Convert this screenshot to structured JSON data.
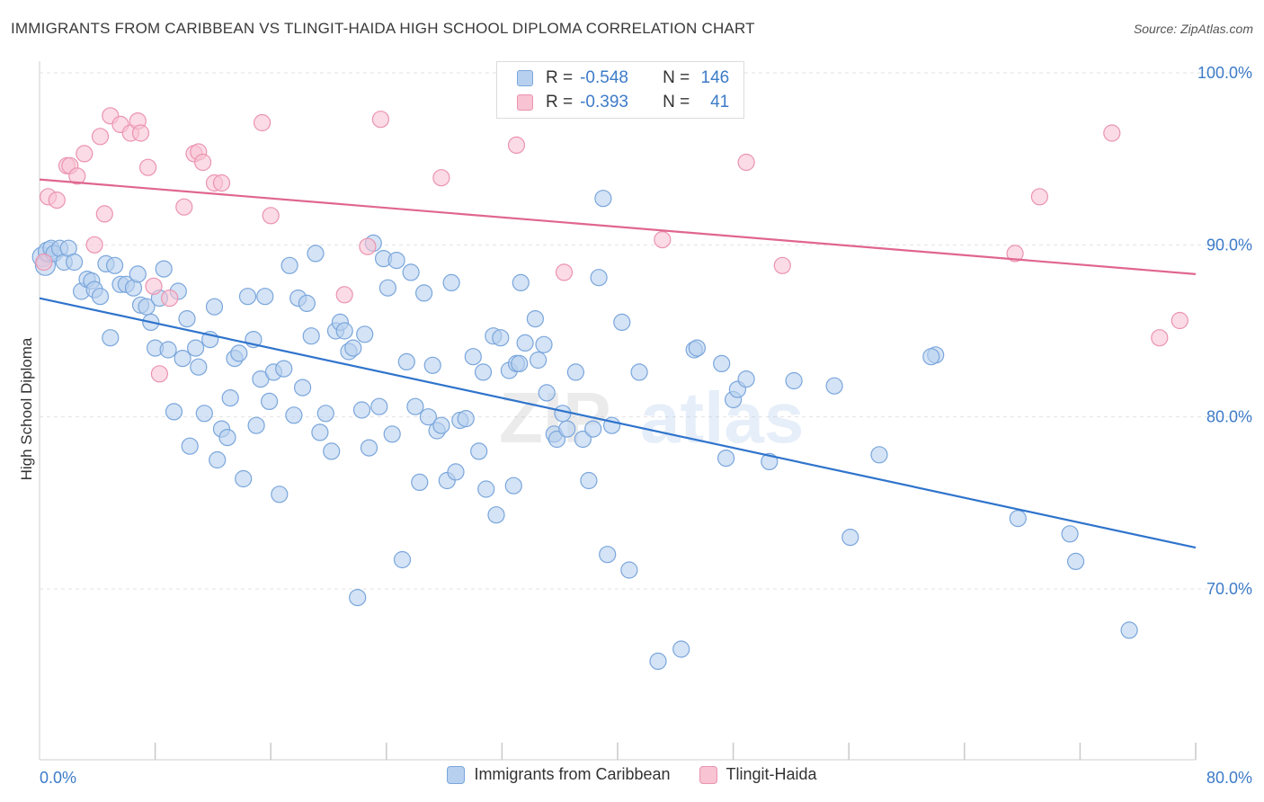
{
  "header": {
    "title": "IMMIGRANTS FROM CARIBBEAN VS TLINGIT-HAIDA HIGH SCHOOL DIPLOMA CORRELATION CHART",
    "source": "Source: ZipAtlas.com"
  },
  "watermark": {
    "zip": "ZIP",
    "atlas": "atlas"
  },
  "legend": {
    "series": [
      {
        "r_label": "R =",
        "r_value": "-0.548",
        "n_label": "N =",
        "n_value": "146"
      },
      {
        "r_label": "R =",
        "r_value": "-0.393",
        "n_label": "N =",
        "n_value": "41"
      }
    ]
  },
  "colors": {
    "blue_fill": "#b8d0ef",
    "blue_stroke": "#7aa6dc",
    "blue_line": "#2f74cc",
    "pink_fill": "#f8c3d3",
    "pink_stroke": "#eb93b0",
    "pink_line": "#e0668e",
    "tick_text": "#3d7bc8"
  },
  "chart_data": {
    "type": "scatter",
    "title": "IMMIGRANTS FROM CARIBBEAN VS TLINGIT-HAIDA HIGH SCHOOL DIPLOMA CORRELATION CHART",
    "xlabel": "",
    "ylabel": "High School Diploma",
    "xlim": [
      0,
      80
    ],
    "ylim": [
      60,
      101.5
    ],
    "x_tick_labels": [
      "0.0%",
      "80.0%"
    ],
    "y_ticks": [
      70,
      80,
      90,
      100
    ],
    "y_tick_labels": [
      "70.0%",
      "80.0%",
      "90.0%",
      "100.0%"
    ],
    "grid": true,
    "legend_position": "top-center",
    "series": [
      {
        "name": "Immigrants from Caribbean",
        "trend": {
          "x": [
            0,
            80
          ],
          "y": [
            86.9,
            72.4
          ]
        },
        "points": [
          [
            0.2,
            89.3
          ],
          [
            0.4,
            88.8
          ],
          [
            0.6,
            89.6
          ],
          [
            0.8,
            89.8
          ],
          [
            1.0,
            89.5
          ],
          [
            1.4,
            89.8
          ],
          [
            1.7,
            89.0
          ],
          [
            2.0,
            89.8
          ],
          [
            2.4,
            89.0
          ],
          [
            2.9,
            87.3
          ],
          [
            3.3,
            88.0
          ],
          [
            3.6,
            87.9
          ],
          [
            3.8,
            87.4
          ],
          [
            4.2,
            87.0
          ],
          [
            4.6,
            88.9
          ],
          [
            4.9,
            84.6
          ],
          [
            5.2,
            88.8
          ],
          [
            5.6,
            87.7
          ],
          [
            6.0,
            87.7
          ],
          [
            6.5,
            87.5
          ],
          [
            6.8,
            88.3
          ],
          [
            7.0,
            86.5
          ],
          [
            7.4,
            86.4
          ],
          [
            7.7,
            85.5
          ],
          [
            8.0,
            84.0
          ],
          [
            8.3,
            86.9
          ],
          [
            8.6,
            88.6
          ],
          [
            8.9,
            83.9
          ],
          [
            9.3,
            80.3
          ],
          [
            9.6,
            87.3
          ],
          [
            9.9,
            83.4
          ],
          [
            10.2,
            85.7
          ],
          [
            10.4,
            78.3
          ],
          [
            10.8,
            84.0
          ],
          [
            11.0,
            82.9
          ],
          [
            11.4,
            80.2
          ],
          [
            11.8,
            84.5
          ],
          [
            12.1,
            86.4
          ],
          [
            12.3,
            77.5
          ],
          [
            12.6,
            79.3
          ],
          [
            13.0,
            78.8
          ],
          [
            13.2,
            81.1
          ],
          [
            13.5,
            83.4
          ],
          [
            13.8,
            83.7
          ],
          [
            14.1,
            76.4
          ],
          [
            14.4,
            87.0
          ],
          [
            14.8,
            84.5
          ],
          [
            15.0,
            79.5
          ],
          [
            15.3,
            82.2
          ],
          [
            15.6,
            87.0
          ],
          [
            15.9,
            80.9
          ],
          [
            16.2,
            82.6
          ],
          [
            16.6,
            75.5
          ],
          [
            16.9,
            82.8
          ],
          [
            17.3,
            88.8
          ],
          [
            17.6,
            80.1
          ],
          [
            17.9,
            86.9
          ],
          [
            18.2,
            81.7
          ],
          [
            18.5,
            86.6
          ],
          [
            18.8,
            84.7
          ],
          [
            19.1,
            89.5
          ],
          [
            19.4,
            79.1
          ],
          [
            19.8,
            80.2
          ],
          [
            20.2,
            78.0
          ],
          [
            20.5,
            85.0
          ],
          [
            20.8,
            85.5
          ],
          [
            21.1,
            85.0
          ],
          [
            21.4,
            83.8
          ],
          [
            21.7,
            84.0
          ],
          [
            22.0,
            69.5
          ],
          [
            22.3,
            80.4
          ],
          [
            22.5,
            84.8
          ],
          [
            22.8,
            78.2
          ],
          [
            23.1,
            90.1
          ],
          [
            23.5,
            80.6
          ],
          [
            23.8,
            89.2
          ],
          [
            24.1,
            87.5
          ],
          [
            24.4,
            79.0
          ],
          [
            24.7,
            89.1
          ],
          [
            25.1,
            71.7
          ],
          [
            25.4,
            83.2
          ],
          [
            25.7,
            88.4
          ],
          [
            26.0,
            80.6
          ],
          [
            26.3,
            76.2
          ],
          [
            26.6,
            87.2
          ],
          [
            26.9,
            80.0
          ],
          [
            27.2,
            83.0
          ],
          [
            27.5,
            79.2
          ],
          [
            27.8,
            79.5
          ],
          [
            28.2,
            76.3
          ],
          [
            28.5,
            87.8
          ],
          [
            28.8,
            76.8
          ],
          [
            29.1,
            79.8
          ],
          [
            29.5,
            79.9
          ],
          [
            30.0,
            83.5
          ],
          [
            30.4,
            78.0
          ],
          [
            30.7,
            82.6
          ],
          [
            30.9,
            75.8
          ],
          [
            31.4,
            84.7
          ],
          [
            31.6,
            74.3
          ],
          [
            31.9,
            84.6
          ],
          [
            32.5,
            82.7
          ],
          [
            32.8,
            76.0
          ],
          [
            33.0,
            83.1
          ],
          [
            33.3,
            87.8
          ],
          [
            33.6,
            84.3
          ],
          [
            33.2,
            83.1
          ],
          [
            34.3,
            85.7
          ],
          [
            34.5,
            83.3
          ],
          [
            34.9,
            84.2
          ],
          [
            35.1,
            81.4
          ],
          [
            35.6,
            79.0
          ],
          [
            35.8,
            78.7
          ],
          [
            36.2,
            80.2
          ],
          [
            36.5,
            79.3
          ],
          [
            37.1,
            82.6
          ],
          [
            37.6,
            78.7
          ],
          [
            38.0,
            76.3
          ],
          [
            38.3,
            79.3
          ],
          [
            38.7,
            88.1
          ],
          [
            39.0,
            92.7
          ],
          [
            39.3,
            72.0
          ],
          [
            39.6,
            79.5
          ],
          [
            40.3,
            85.5
          ],
          [
            40.8,
            71.1
          ],
          [
            41.5,
            82.6
          ],
          [
            42.8,
            65.8
          ],
          [
            44.4,
            66.5
          ],
          [
            45.3,
            83.9
          ],
          [
            45.5,
            84.0
          ],
          [
            47.2,
            83.1
          ],
          [
            47.5,
            77.6
          ],
          [
            48.0,
            81.0
          ],
          [
            48.3,
            81.6
          ],
          [
            48.9,
            82.2
          ],
          [
            50.5,
            77.4
          ],
          [
            52.2,
            82.1
          ],
          [
            55.0,
            81.8
          ],
          [
            56.1,
            73.0
          ],
          [
            58.1,
            77.8
          ],
          [
            62.0,
            83.6
          ],
          [
            67.7,
            74.1
          ],
          [
            71.3,
            73.2
          ],
          [
            71.7,
            71.6
          ],
          [
            75.4,
            67.6
          ],
          [
            61.7,
            83.5
          ]
        ]
      },
      {
        "name": "Tlingit-Haida",
        "trend": {
          "x": [
            0,
            80
          ],
          "y": [
            93.8,
            88.3
          ]
        },
        "points": [
          [
            0.3,
            89.0
          ],
          [
            0.6,
            92.8
          ],
          [
            1.2,
            92.6
          ],
          [
            1.9,
            94.6
          ],
          [
            2.1,
            94.6
          ],
          [
            2.6,
            94.0
          ],
          [
            3.1,
            95.3
          ],
          [
            3.8,
            90.0
          ],
          [
            4.2,
            96.3
          ],
          [
            4.5,
            91.8
          ],
          [
            4.9,
            97.5
          ],
          [
            5.6,
            97.0
          ],
          [
            6.3,
            96.5
          ],
          [
            6.8,
            97.2
          ],
          [
            7.0,
            96.5
          ],
          [
            7.5,
            94.5
          ],
          [
            7.9,
            87.6
          ],
          [
            8.3,
            82.5
          ],
          [
            9.0,
            86.9
          ],
          [
            10.0,
            92.2
          ],
          [
            10.7,
            95.3
          ],
          [
            11.0,
            95.4
          ],
          [
            11.3,
            94.8
          ],
          [
            12.1,
            93.6
          ],
          [
            12.6,
            93.6
          ],
          [
            15.4,
            97.1
          ],
          [
            16.0,
            91.7
          ],
          [
            21.1,
            87.1
          ],
          [
            22.7,
            89.9
          ],
          [
            23.6,
            97.3
          ],
          [
            27.8,
            93.9
          ],
          [
            33.0,
            95.8
          ],
          [
            36.3,
            88.4
          ],
          [
            43.1,
            90.3
          ],
          [
            48.9,
            94.8
          ],
          [
            51.4,
            88.8
          ],
          [
            67.5,
            89.5
          ],
          [
            69.2,
            92.8
          ],
          [
            74.2,
            96.5
          ],
          [
            77.5,
            84.6
          ],
          [
            78.9,
            85.6
          ]
        ]
      }
    ]
  },
  "bottom_legend": {
    "items": [
      {
        "label": "Immigrants from Caribbean"
      },
      {
        "label": "Tlingit-Haida"
      }
    ]
  }
}
